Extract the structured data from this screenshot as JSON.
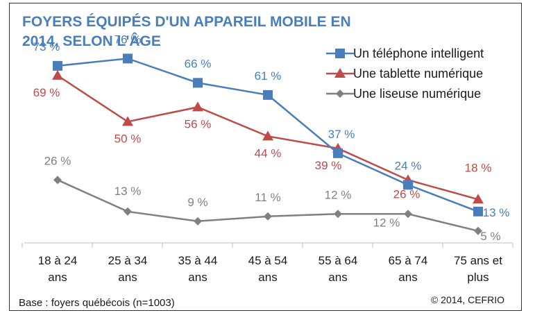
{
  "chart_data": {
    "type": "line",
    "title_lines": [
      "FOYERS ÉQUIPÉS D'UN APPAREIL MOBILE EN",
      "2014, SELON L'ÂGE"
    ],
    "categories": [
      [
        "18 à 24",
        "ans"
      ],
      [
        "25 à 34",
        "ans"
      ],
      [
        "35 à 44",
        "ans"
      ],
      [
        "45 à 54",
        "ans"
      ],
      [
        "55 à 64",
        "ans"
      ],
      [
        "65 à 74",
        "ans"
      ],
      [
        "75 ans et",
        "plus"
      ]
    ],
    "series": [
      {
        "name": "Un téléphone intelligent",
        "values": [
          73,
          76,
          66,
          61,
          37,
          24,
          13
        ],
        "labels": [
          "73 %",
          "76 %",
          "66 %",
          "61 %",
          "37 %",
          "24 %",
          "13 %"
        ],
        "color": "#4a7ebb",
        "marker": "square"
      },
      {
        "name": "Une tablette numérique",
        "values": [
          69,
          50,
          56,
          44,
          39,
          26,
          18
        ],
        "labels": [
          "69 %",
          "50 %",
          "56 %",
          "44 %",
          "39 %",
          "26 %",
          "18 %"
        ],
        "color": "#be4b48",
        "marker": "triangle"
      },
      {
        "name": "Une liseuse numérique",
        "values": [
          26,
          13,
          9,
          11,
          12,
          12,
          5
        ],
        "labels": [
          "26 %",
          "13 %",
          "9 %",
          "11 %",
          "12 %",
          "12 %",
          "5 %"
        ],
        "color": "#808080",
        "marker": "diamond"
      }
    ],
    "ylim": [
      0,
      100
    ],
    "grid": false,
    "legend_position": "top-right",
    "xlabel": "",
    "ylabel": "",
    "title_color": "#4a7ebb"
  },
  "footnote": "Base : foyers québécois (n=1003)",
  "credit": "© 2014, CEFRIO"
}
